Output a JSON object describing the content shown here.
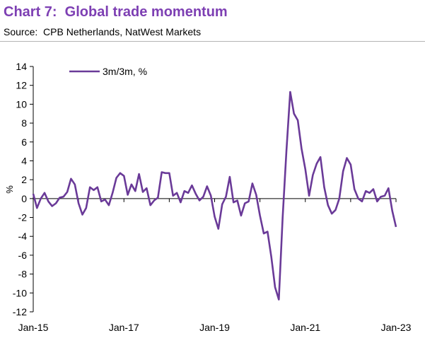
{
  "header": {
    "title": "Chart 7:  Global trade momentum",
    "source": "Source:  CPB Netherlands, NatWest Markets"
  },
  "colors": {
    "title": "#7d3fb3",
    "series": "#6a3a98",
    "axis": "#000000",
    "rule": "#b3b3b3"
  },
  "chart_data": {
    "type": "line",
    "ylabel": "%",
    "xlabel": "",
    "ylim": [
      -12,
      14
    ],
    "yticks": [
      14,
      12,
      10,
      8,
      6,
      4,
      2,
      0,
      -2,
      -4,
      -6,
      -8,
      -10,
      -12
    ],
    "xlim": [
      "Jan-15",
      "Jan-23"
    ],
    "xticks": [
      "Jan-15",
      "Jan-17",
      "Jan-19",
      "Jan-21",
      "Jan-23"
    ],
    "grid": false,
    "legend": "top-left",
    "series": [
      {
        "name": "3m/3m, %",
        "color": "#6a3a98",
        "x": [
          "2015-01",
          "2015-02",
          "2015-03",
          "2015-04",
          "2015-05",
          "2015-06",
          "2015-07",
          "2015-08",
          "2015-09",
          "2015-10",
          "2015-11",
          "2015-12",
          "2016-01",
          "2016-02",
          "2016-03",
          "2016-04",
          "2016-05",
          "2016-06",
          "2016-07",
          "2016-08",
          "2016-09",
          "2016-10",
          "2016-11",
          "2016-12",
          "2017-01",
          "2017-02",
          "2017-03",
          "2017-04",
          "2017-05",
          "2017-06",
          "2017-07",
          "2017-08",
          "2017-09",
          "2017-10",
          "2017-11",
          "2017-12",
          "2018-01",
          "2018-02",
          "2018-03",
          "2018-04",
          "2018-05",
          "2018-06",
          "2018-07",
          "2018-08",
          "2018-09",
          "2018-10",
          "2018-11",
          "2018-12",
          "2019-01",
          "2019-02",
          "2019-03",
          "2019-04",
          "2019-05",
          "2019-06",
          "2019-07",
          "2019-08",
          "2019-09",
          "2019-10",
          "2019-11",
          "2019-12",
          "2020-01",
          "2020-02",
          "2020-03",
          "2020-04",
          "2020-05",
          "2020-06",
          "2020-07",
          "2020-08",
          "2020-09",
          "2020-10",
          "2020-11",
          "2020-12",
          "2021-01",
          "2021-02",
          "2021-03",
          "2021-04",
          "2021-05",
          "2021-06",
          "2021-07",
          "2021-08",
          "2021-09",
          "2021-10",
          "2021-11",
          "2021-12",
          "2022-01",
          "2022-02",
          "2022-03",
          "2022-04",
          "2022-05",
          "2022-06",
          "2022-07",
          "2022-08",
          "2022-09",
          "2022-10",
          "2022-11",
          "2022-12",
          "2023-01"
        ],
        "values": [
          0.5,
          -1.0,
          0.0,
          0.6,
          -0.3,
          -0.8,
          -0.5,
          0.1,
          0.2,
          0.7,
          2.1,
          1.5,
          -0.5,
          -1.7,
          -1.0,
          1.2,
          0.9,
          1.2,
          -0.3,
          -0.1,
          -0.7,
          0.6,
          2.2,
          2.7,
          2.4,
          0.4,
          1.5,
          0.8,
          2.6,
          0.7,
          1.1,
          -0.7,
          -0.2,
          0.1,
          2.8,
          2.7,
          2.7,
          0.3,
          0.6,
          -0.4,
          0.8,
          0.6,
          1.4,
          0.5,
          -0.2,
          0.2,
          1.3,
          0.3,
          -1.9,
          -3.2,
          -0.6,
          0.2,
          2.3,
          -0.4,
          -0.2,
          -1.8,
          -0.5,
          -0.3,
          1.6,
          0.4,
          -1.8,
          -3.7,
          -3.5,
          -6.2,
          -9.4,
          -10.7,
          -2.0,
          5.0,
          11.3,
          9.0,
          8.3,
          5.3,
          3.1,
          0.3,
          2.5,
          3.7,
          4.4,
          1.2,
          -0.7,
          -1.6,
          -1.2,
          0.0,
          2.9,
          4.3,
          3.6,
          1.0,
          0.0,
          -0.3,
          0.8,
          0.6,
          1.0,
          -0.3,
          0.2,
          0.3,
          1.1,
          -1.3,
          -3.0
        ]
      }
    ]
  }
}
